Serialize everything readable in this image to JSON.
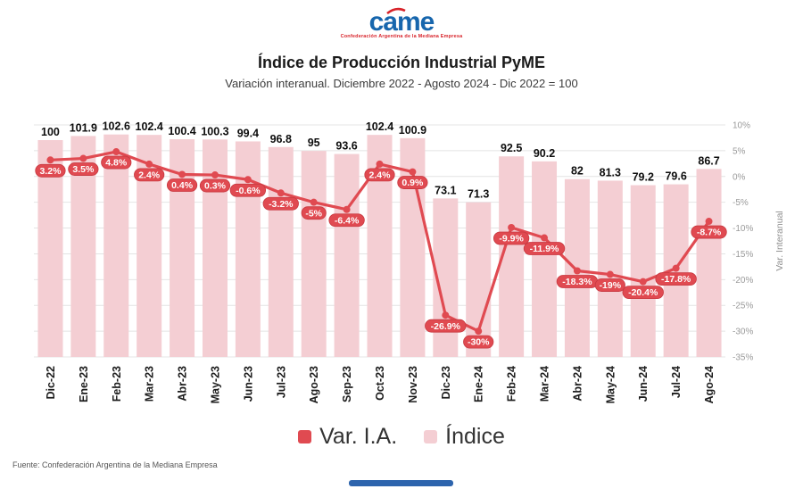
{
  "logo": {
    "brand": "came",
    "tagline": "Confederación Argentina de la Mediana Empresa"
  },
  "header": {
    "title": "Índice de Producción Industrial PyME",
    "subtitle": "Variación interanual. Diciembre 2022 - Agosto 2024 - Dic 2022 = 100"
  },
  "colors": {
    "brand_blue": "#1766ad",
    "brand_red": "#d8232a",
    "bar_pink": "#f4ced3",
    "line_red": "#e04a51",
    "accent_bar": "#2d64ad"
  },
  "chart_data": {
    "type": "bar+line",
    "title": "Índice de Producción Industrial PyME",
    "subtitle": "Variación interanual. Diciembre 2022 - Agosto 2024 - Dic 2022 = 100",
    "categories": [
      "Dic-22",
      "Ene-23",
      "Feb-23",
      "Mar-23",
      "Abr-23",
      "May-23",
      "Jun-23",
      "Jul-23",
      "Ago-23",
      "Sep-23",
      "Oct-23",
      "Nov-23",
      "Dic-23",
      "Ene-24",
      "Feb-24",
      "Mar-24",
      "Abr-24",
      "May-24",
      "Jun-24",
      "Jul-24",
      "Ago-24"
    ],
    "series": [
      {
        "name": "Índice",
        "type": "bar",
        "axis": "index",
        "color": "#f4ced3",
        "values": [
          100,
          101.9,
          102.6,
          102.4,
          100.4,
          100.3,
          99.4,
          96.8,
          95,
          93.6,
          102.4,
          100.9,
          73.1,
          71.3,
          92.5,
          90.2,
          82,
          81.3,
          79.2,
          79.6,
          86.7
        ],
        "value_labels": [
          "100",
          "101.9",
          "102.6",
          "102.4",
          "100.4",
          "100.3",
          "99.4",
          "96.8",
          "95",
          "93.6",
          "102.4",
          "100.9",
          "73.1",
          "71.3",
          "92.5",
          "90.2",
          "82",
          "81.3",
          "79.2",
          "79.6",
          "86.7"
        ]
      },
      {
        "name": "Var. I.A.",
        "type": "line",
        "axis": "pct",
        "color": "#e04a51",
        "values": [
          3.2,
          3.5,
          4.8,
          2.4,
          0.4,
          0.3,
          -0.6,
          -3.2,
          -5,
          -6.4,
          2.4,
          0.9,
          -26.9,
          -30,
          -9.9,
          -11.9,
          -18.3,
          -19,
          -20.4,
          -17.8,
          -8.7
        ],
        "value_labels": [
          "3.2%",
          "3.5%",
          "4.8%",
          "2.4%",
          "0.4%",
          "0.3%",
          "-0.6%",
          "-3.2%",
          "-5%",
          "-6.4%",
          "2.4%",
          "0.9%",
          "-26.9%",
          "-30%",
          "-9.9%",
          "-11.9%",
          "-18.3%",
          "-19%",
          "-20.4%",
          "-17.8%",
          "-8.7%"
        ]
      }
    ],
    "axes": {
      "pct": {
        "label": "Var. Interanual",
        "side": "right",
        "min": -35,
        "max": 10,
        "ticks": [
          "10%",
          "5%",
          "0%",
          "-5%",
          "-10%",
          "-15%",
          "-20%",
          "-25%",
          "-30%",
          "-35%"
        ]
      },
      "index": {
        "min": 0,
        "max": 107,
        "hidden": true
      }
    },
    "grid": true,
    "legend_position": "bottom",
    "legend_order": [
      "Var. I.A.",
      "Índice"
    ]
  },
  "footer": {
    "source": "Fuente: Confederación Argentina de la Mediana Empresa"
  }
}
